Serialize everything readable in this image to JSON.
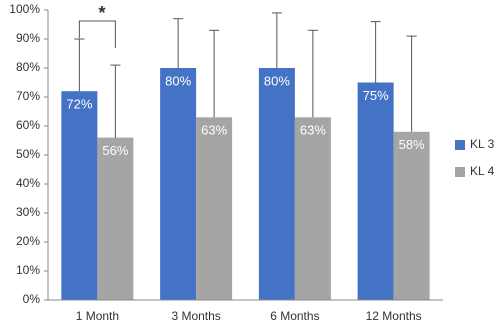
{
  "chart_data": {
    "type": "bar",
    "categories": [
      "1 Month",
      "3 Months",
      "6 Months",
      "12 Months"
    ],
    "series": [
      {
        "name": "KL 3",
        "color": "#4472c4",
        "values": [
          72,
          80,
          80,
          75
        ],
        "value_labels": [
          "72%",
          "80%",
          "80%",
          "75%"
        ],
        "errors": [
          18,
          17,
          19,
          21
        ]
      },
      {
        "name": "KL 4",
        "color": "#a5a5a5",
        "values": [
          56,
          63,
          63,
          58
        ],
        "value_labels": [
          "56%",
          "63%",
          "63%",
          "58%"
        ],
        "errors": [
          25,
          30,
          30,
          33
        ]
      }
    ],
    "annotation": "*",
    "ylim": [
      0,
      100
    ],
    "yticks": [
      {
        "value": 0,
        "label": "0%"
      },
      {
        "value": 10,
        "label": "10%"
      },
      {
        "value": 20,
        "label": "20%"
      },
      {
        "value": 30,
        "label": "30%"
      },
      {
        "value": 40,
        "label": "40%"
      },
      {
        "value": 50,
        "label": "50%"
      },
      {
        "value": 60,
        "label": "60%"
      },
      {
        "value": 70,
        "label": "70%"
      },
      {
        "value": 80,
        "label": "80%"
      },
      {
        "value": 90,
        "label": "90%"
      },
      {
        "value": 100,
        "label": "100%"
      }
    ],
    "legend": "right"
  }
}
